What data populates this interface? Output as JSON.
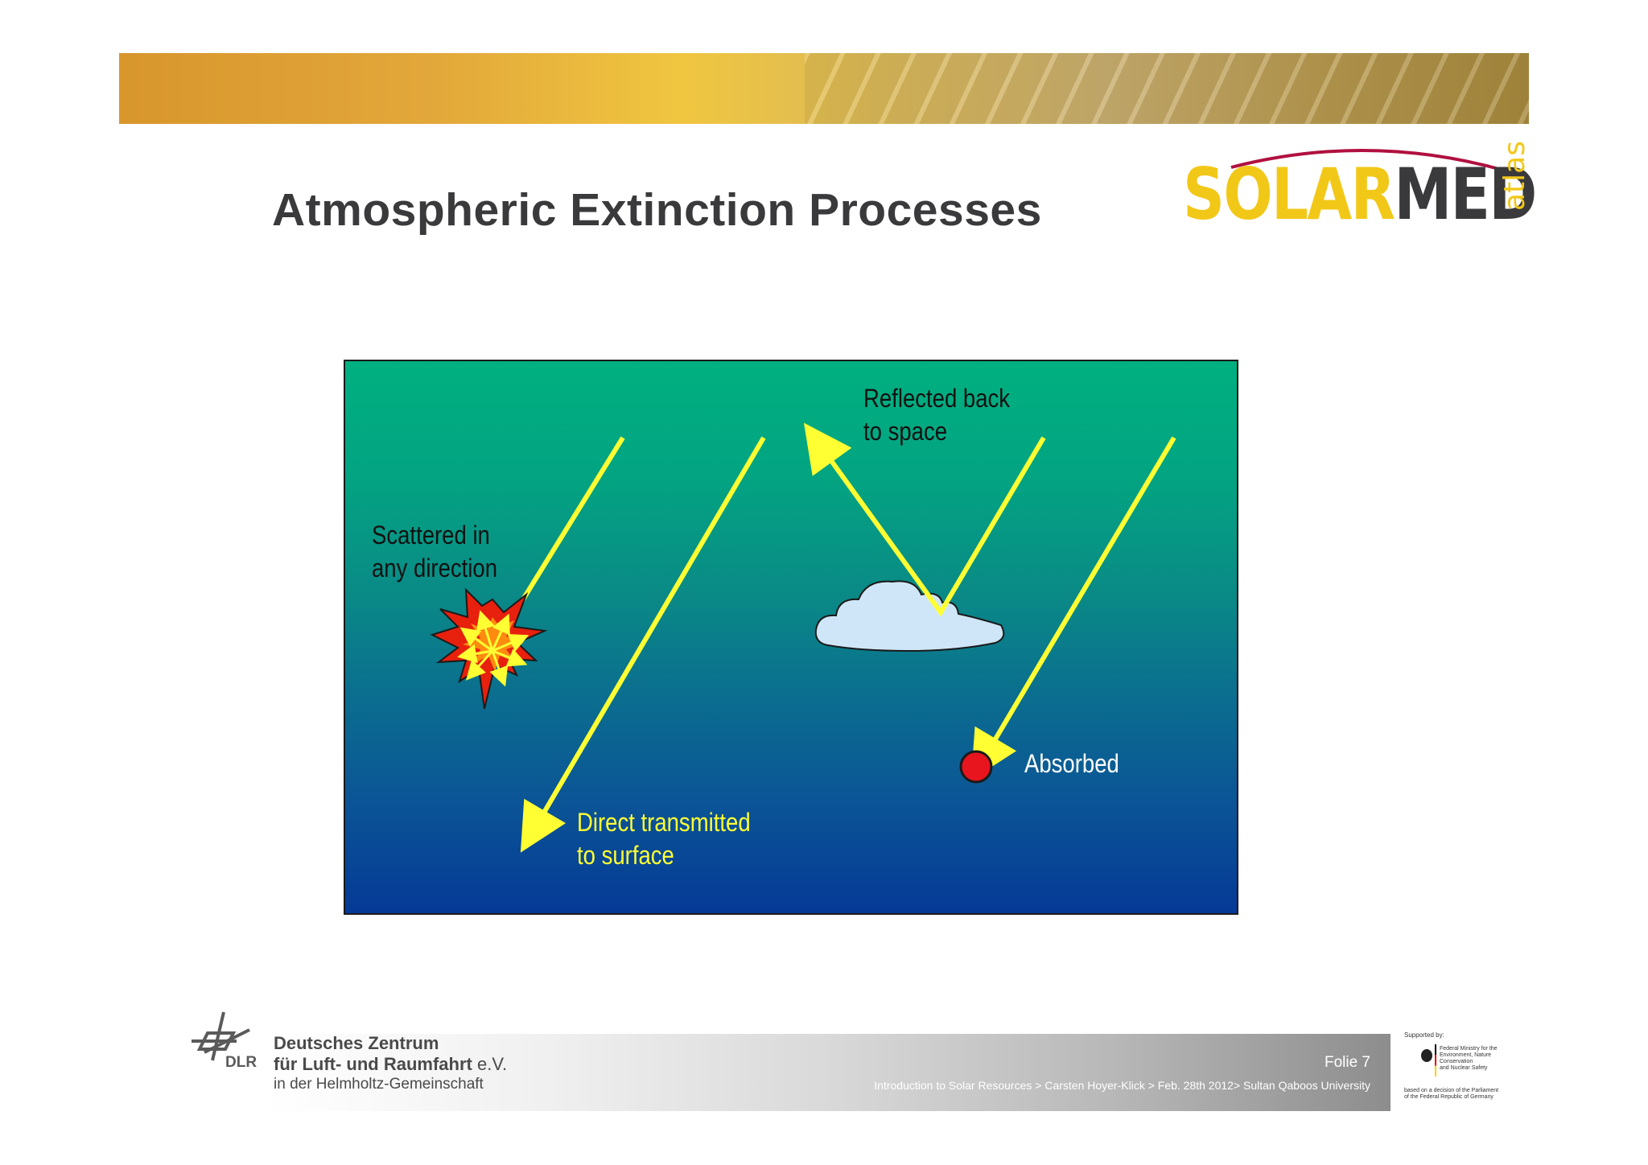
{
  "slide": {
    "title": "Atmospheric Extinction Processes"
  },
  "logo": {
    "solar": "SOLAR",
    "med": "MED",
    "atlas": "atlas",
    "colors": {
      "solar": "#f2c818",
      "med": "#3a3a3c",
      "arc": "#b01040"
    }
  },
  "diagram": {
    "labels": {
      "reflected": "Reflected back\nto space",
      "scattered": "Scattered in\nany direction",
      "absorbed": "Absorbed",
      "direct": "Direct transmitted\nto surface"
    },
    "colors": {
      "ray": "#ffff33",
      "cloud": "#cfe6f8",
      "absorber": "#e8141e",
      "burst_outer": "#e8200e",
      "burst_inner": "#ff8a10",
      "background_top": "#00b07f",
      "background_bottom": "#053a96"
    },
    "icons": [
      "cloud-icon",
      "burst-icon",
      "absorber-dot-icon"
    ]
  },
  "footer": {
    "org_line1": "Deutsches Zentrum",
    "org_line2": "für Luft- und Raumfahrt",
    "org_ev": " e.V.",
    "org_line3": "in der Helmholtz-Gemeinschaft",
    "org_abbr": "DLR",
    "slide_number": "Folie 7",
    "credit": "Introduction to Solar Resources > Carsten Hoyer-Klick > Feb. 28th  2012>  Sultan Qaboos University"
  },
  "sponsor": {
    "supported_by": "Supported by:",
    "ministry": "Federal Ministry for the\nEnvironment, Nature Conservation\nand Nuclear Safety",
    "decision": "based on a decision of the Parliament\nof the Federal Republic of Germany"
  }
}
